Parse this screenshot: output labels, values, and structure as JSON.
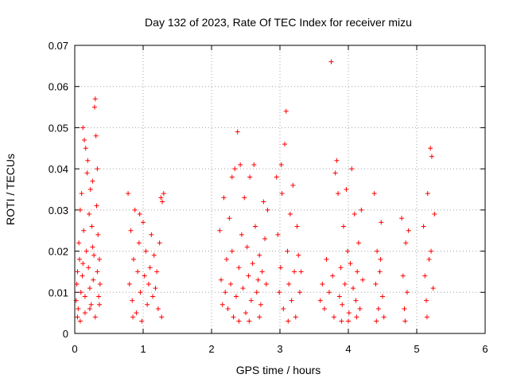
{
  "chart_data": {
    "type": "scatter",
    "title": "Day 132 of 2023, Rate Of TEC Index for receiver mizu",
    "xlabel": "GPS time / hours",
    "ylabel": "ROTI / TECUs",
    "xlim": [
      0,
      6
    ],
    "ylim": [
      0,
      0.07
    ],
    "x_ticks": [
      "0",
      "1",
      "2",
      "3",
      "4",
      "5",
      "6"
    ],
    "y_ticks": [
      "0",
      "0.01",
      "0.02",
      "0.03",
      "0.04",
      "0.05",
      "0.06",
      "0.07"
    ],
    "grid": true,
    "marker": "+",
    "color": "#ff0000",
    "series": [
      {
        "name": "ROTI",
        "points": [
          [
            0.02,
            0.008
          ],
          [
            0.03,
            0.012
          ],
          [
            0.04,
            0.015
          ],
          [
            0.05,
            0.006
          ],
          [
            0.06,
            0.022
          ],
          [
            0.07,
            0.018
          ],
          [
            0.08,
            0.03
          ],
          [
            0.09,
            0.01
          ],
          [
            0.1,
            0.034
          ],
          [
            0.11,
            0.014
          ],
          [
            0.12,
            0.05
          ],
          [
            0.13,
            0.025
          ],
          [
            0.14,
            0.047
          ],
          [
            0.15,
            0.009
          ],
          [
            0.16,
            0.045
          ],
          [
            0.17,
            0.02
          ],
          [
            0.18,
            0.039
          ],
          [
            0.19,
            0.042
          ],
          [
            0.2,
            0.016
          ],
          [
            0.21,
            0.029
          ],
          [
            0.22,
            0.011
          ],
          [
            0.23,
            0.035
          ],
          [
            0.24,
            0.007
          ],
          [
            0.25,
            0.026
          ],
          [
            0.26,
            0.037
          ],
          [
            0.27,
            0.013
          ],
          [
            0.28,
            0.019
          ],
          [
            0.29,
            0.055
          ],
          [
            0.3,
            0.057
          ],
          [
            0.31,
            0.048
          ],
          [
            0.32,
            0.031
          ],
          [
            0.33,
            0.04
          ],
          [
            0.34,
            0.024
          ],
          [
            0.35,
            0.009
          ],
          [
            0.36,
            0.018
          ],
          [
            0.37,
            0.012
          ],
          [
            0.04,
            0.004
          ],
          [
            0.08,
            0.003
          ],
          [
            0.15,
            0.005
          ],
          [
            0.22,
            0.006
          ],
          [
            0.3,
            0.004
          ],
          [
            0.36,
            0.007
          ],
          [
            0.12,
            0.017
          ],
          [
            0.26,
            0.021
          ],
          [
            0.33,
            0.015
          ],
          [
            0.78,
            0.034
          ],
          [
            0.8,
            0.012
          ],
          [
            0.82,
            0.025
          ],
          [
            0.84,
            0.008
          ],
          [
            0.86,
            0.018
          ],
          [
            0.88,
            0.03
          ],
          [
            0.9,
            0.005
          ],
          [
            0.92,
            0.015
          ],
          [
            0.94,
            0.022
          ],
          [
            0.96,
            0.01
          ],
          [
            0.98,
            0.003
          ],
          [
            1.0,
            0.027
          ],
          [
            1.02,
            0.014
          ],
          [
            1.04,
            0.02
          ],
          [
            1.06,
            0.007
          ],
          [
            1.08,
            0.012
          ],
          [
            1.1,
            0.016
          ],
          [
            1.12,
            0.024
          ],
          [
            1.14,
            0.009
          ],
          [
            1.16,
            0.019
          ],
          [
            1.18,
            0.011
          ],
          [
            1.2,
            0.015
          ],
          [
            1.22,
            0.006
          ],
          [
            1.24,
            0.022
          ],
          [
            1.26,
            0.033
          ],
          [
            1.28,
            0.032
          ],
          [
            1.3,
            0.034
          ],
          [
            1.27,
            0.004
          ],
          [
            0.85,
            0.004
          ],
          [
            0.95,
            0.029
          ],
          [
            2.12,
            0.025
          ],
          [
            2.14,
            0.013
          ],
          [
            2.16,
            0.007
          ],
          [
            2.18,
            0.033
          ],
          [
            2.2,
            0.01
          ],
          [
            2.22,
            0.018
          ],
          [
            2.24,
            0.006
          ],
          [
            2.26,
            0.028
          ],
          [
            2.28,
            0.012
          ],
          [
            2.3,
            0.02
          ],
          [
            2.32,
            0.004
          ],
          [
            2.34,
            0.04
          ],
          [
            2.36,
            0.009
          ],
          [
            2.38,
            0.049
          ],
          [
            2.4,
            0.016
          ],
          [
            2.42,
            0.041
          ],
          [
            2.44,
            0.024
          ],
          [
            2.46,
            0.011
          ],
          [
            2.48,
            0.033
          ],
          [
            2.5,
            0.005
          ],
          [
            2.52,
            0.021
          ],
          [
            2.54,
            0.014
          ],
          [
            2.56,
            0.038
          ],
          [
            2.58,
            0.008
          ],
          [
            2.6,
            0.017
          ],
          [
            2.62,
            0.041
          ],
          [
            2.64,
            0.026
          ],
          [
            2.66,
            0.01
          ],
          [
            2.68,
            0.013
          ],
          [
            2.7,
            0.019
          ],
          [
            2.72,
            0.007
          ],
          [
            2.74,
            0.015
          ],
          [
            2.76,
            0.032
          ],
          [
            2.78,
            0.023
          ],
          [
            2.8,
            0.012
          ],
          [
            2.82,
            0.03
          ],
          [
            2.3,
            0.038
          ],
          [
            2.4,
            0.003
          ],
          [
            2.55,
            0.003
          ],
          [
            2.7,
            0.004
          ],
          [
            2.95,
            0.038
          ],
          [
            2.97,
            0.024
          ],
          [
            2.99,
            0.01
          ],
          [
            3.01,
            0.016
          ],
          [
            3.03,
            0.034
          ],
          [
            3.05,
            0.006
          ],
          [
            3.07,
            0.046
          ],
          [
            3.09,
            0.054
          ],
          [
            3.11,
            0.02
          ],
          [
            3.13,
            0.012
          ],
          [
            3.15,
            0.029
          ],
          [
            3.17,
            0.008
          ],
          [
            3.19,
            0.036
          ],
          [
            3.21,
            0.015
          ],
          [
            3.23,
            0.004
          ],
          [
            3.25,
            0.026
          ],
          [
            3.27,
            0.019
          ],
          [
            3.29,
            0.01
          ],
          [
            3.31,
            0.015
          ],
          [
            3.02,
            0.041
          ],
          [
            3.12,
            0.003
          ],
          [
            3.59,
            0.008
          ],
          [
            3.62,
            0.012
          ],
          [
            3.65,
            0.006
          ],
          [
            3.68,
            0.018
          ],
          [
            3.72,
            0.01
          ],
          [
            3.75,
            0.066
          ],
          [
            3.77,
            0.014
          ],
          [
            3.79,
            0.004
          ],
          [
            3.81,
            0.039
          ],
          [
            3.83,
            0.042
          ],
          [
            3.85,
            0.034
          ],
          [
            3.87,
            0.009
          ],
          [
            3.89,
            0.016
          ],
          [
            3.91,
            0.007
          ],
          [
            3.93,
            0.026
          ],
          [
            3.95,
            0.012
          ],
          [
            3.97,
            0.035
          ],
          [
            3.99,
            0.02
          ],
          [
            4.01,
            0.005
          ],
          [
            4.03,
            0.017
          ],
          [
            4.05,
            0.04
          ],
          [
            4.07,
            0.011
          ],
          [
            4.09,
            0.029
          ],
          [
            4.11,
            0.008
          ],
          [
            4.13,
            0.015
          ],
          [
            4.15,
            0.022
          ],
          [
            4.17,
            0.006
          ],
          [
            4.19,
            0.03
          ],
          [
            4.21,
            0.013
          ],
          [
            3.9,
            0.003
          ],
          [
            4.0,
            0.003
          ],
          [
            4.12,
            0.004
          ],
          [
            4.38,
            0.034
          ],
          [
            4.4,
            0.012
          ],
          [
            4.42,
            0.02
          ],
          [
            4.44,
            0.006
          ],
          [
            4.46,
            0.015
          ],
          [
            4.48,
            0.027
          ],
          [
            4.5,
            0.009
          ],
          [
            4.52,
            0.004
          ],
          [
            4.41,
            0.003
          ],
          [
            4.47,
            0.018
          ],
          [
            4.78,
            0.028
          ],
          [
            4.8,
            0.014
          ],
          [
            4.82,
            0.006
          ],
          [
            4.84,
            0.022
          ],
          [
            4.86,
            0.01
          ],
          [
            4.88,
            0.025
          ],
          [
            4.83,
            0.003
          ],
          [
            5.1,
            0.026
          ],
          [
            5.12,
            0.014
          ],
          [
            5.14,
            0.008
          ],
          [
            5.16,
            0.034
          ],
          [
            5.18,
            0.018
          ],
          [
            5.2,
            0.045
          ],
          [
            5.22,
            0.043
          ],
          [
            5.24,
            0.011
          ],
          [
            5.26,
            0.029
          ],
          [
            5.15,
            0.004
          ],
          [
            5.21,
            0.02
          ]
        ]
      }
    ]
  }
}
